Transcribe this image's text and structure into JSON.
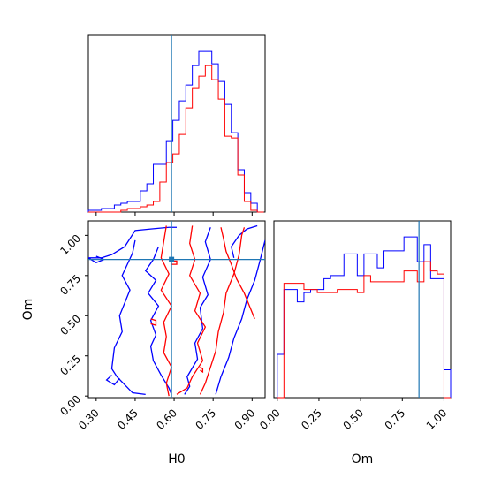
{
  "chart_data": {
    "type": "corner",
    "parameters": [
      "H0",
      "Om"
    ],
    "truth": {
      "H0": 0.59,
      "Om": 0.85
    },
    "colors": {
      "series_a": "#0000ff",
      "series_b": "#ff0000",
      "truth": "#1f77b4"
    },
    "grid": false,
    "legend": "none",
    "panels": [
      {
        "id": "h0-marginal",
        "type": "histogram",
        "param": "H0",
        "xlim": [
          0.27,
          0.95
        ],
        "bins": [
          0.27,
          0.295,
          0.32,
          0.345,
          0.37,
          0.395,
          0.42,
          0.445,
          0.47,
          0.495,
          0.52,
          0.545,
          0.57,
          0.595,
          0.62,
          0.645,
          0.67,
          0.695,
          0.72,
          0.745,
          0.77,
          0.795,
          0.82,
          0.845,
          0.87,
          0.895,
          0.92,
          0.945
        ],
        "series": [
          {
            "color": "blue",
            "values": [
              1,
              1,
              2,
              2,
              4,
              5,
              6,
              6,
              12,
              16,
              27,
              27,
              40,
              52,
              63,
              72,
              83,
              91,
              91,
              84,
              74,
              61,
              45,
              24,
              11,
              5,
              0
            ]
          },
          {
            "color": "red",
            "values": [
              0,
              0,
              0,
              0,
              0,
              1,
              2,
              2,
              3,
              4,
              6,
              17,
              28,
              33,
              44,
              59,
              70,
              77,
              83,
              75,
              64,
              43,
              42,
              21,
              6,
              1,
              0
            ]
          }
        ]
      },
      {
        "id": "om-marginal",
        "type": "histogram",
        "param": "Om",
        "xlim": [
          -0.02,
          1.04
        ],
        "bins": [
          0.0,
          0.04,
          0.08,
          0.12,
          0.16,
          0.2,
          0.24,
          0.28,
          0.32,
          0.36,
          0.4,
          0.44,
          0.48,
          0.52,
          0.56,
          0.6,
          0.64,
          0.68,
          0.72,
          0.76,
          0.8,
          0.84,
          0.88,
          0.92,
          0.96,
          1.0,
          1.04
        ],
        "series": [
          {
            "color": "blue",
            "values": [
              28,
              70,
              70,
              62,
              68,
              70,
              70,
              77,
              79,
              79,
              93,
              93,
              79,
              93,
              93,
              84,
              95,
              95,
              95,
              104,
              104,
              88,
              99,
              77,
              77,
              18
            ]
          },
          {
            "color": "red",
            "values": [
              0,
              74,
              74,
              74,
              70,
              70,
              68,
              68,
              68,
              70,
              70,
              70,
              68,
              79,
              75,
              75,
              75,
              75,
              75,
              82,
              82,
              75,
              88,
              82,
              80,
              0
            ]
          }
        ]
      },
      {
        "id": "joint-h0-om",
        "type": "contour",
        "xparam": "H0",
        "yparam": "Om",
        "xlim": [
          0.27,
          0.95
        ],
        "ylim": [
          -0.01,
          1.09
        ],
        "series": [
          {
            "color": "blue",
            "level": "outer",
            "lines": [
              [
                [
                  0.27,
                  0.86
                ],
                [
                  0.32,
                  0.86
                ],
                [
                  0.36,
                  0.88
                ],
                [
                  0.41,
                  0.93
                ],
                [
                  0.45,
                  1.03
                ],
                [
                  0.51,
                  1.04
                ],
                [
                  0.58,
                  1.05
                ],
                [
                  0.61,
                  1.05
                ]
              ],
              [
                [
                  0.45,
                  0.97
                ],
                [
                  0.44,
                  0.89
                ],
                [
                  0.42,
                  0.82
                ],
                [
                  0.4,
                  0.75
                ],
                [
                  0.43,
                  0.66
                ],
                [
                  0.41,
                  0.58
                ],
                [
                  0.39,
                  0.5
                ],
                [
                  0.4,
                  0.4
                ],
                [
                  0.37,
                  0.3
                ],
                [
                  0.36,
                  0.17
                ],
                [
                  0.38,
                  0.12
                ],
                [
                  0.44,
                  0.02
                ],
                [
                  0.49,
                  0.01
                ]
              ],
              [
                [
                  0.54,
                  0.93
                ],
                [
                  0.52,
                  0.85
                ],
                [
                  0.49,
                  0.78
                ],
                [
                  0.53,
                  0.72
                ],
                [
                  0.5,
                  0.64
                ],
                [
                  0.54,
                  0.56
                ],
                [
                  0.51,
                  0.47
                ],
                [
                  0.53,
                  0.38
                ],
                [
                  0.51,
                  0.31
                ],
                [
                  0.52,
                  0.22
                ],
                [
                  0.55,
                  0.13
                ],
                [
                  0.58,
                  0.05
                ],
                [
                  0.59,
                  0.01
                ]
              ],
              [
                [
                  0.64,
                  0.01
                ],
                [
                  0.66,
                  0.06
                ],
                [
                  0.65,
                  0.12
                ],
                [
                  0.69,
                  0.23
                ],
                [
                  0.68,
                  0.33
                ],
                [
                  0.71,
                  0.42
                ],
                [
                  0.7,
                  0.55
                ],
                [
                  0.73,
                  0.63
                ],
                [
                  0.71,
                  0.74
                ],
                [
                  0.74,
                  0.85
                ],
                [
                  0.72,
                  0.96
                ],
                [
                  0.74,
                  1.05
                ]
              ],
              [
                [
                  0.76,
                  0.01
                ],
                [
                  0.78,
                  0.12
                ],
                [
                  0.81,
                  0.24
                ],
                [
                  0.83,
                  0.36
                ],
                [
                  0.86,
                  0.48
                ],
                [
                  0.88,
                  0.6
                ],
                [
                  0.91,
                  0.72
                ],
                [
                  0.93,
                  0.84
                ],
                [
                  0.95,
                  0.97
                ]
              ],
              [
                [
                  0.83,
                  0.86
                ],
                [
                  0.82,
                  0.93
                ],
                [
                  0.85,
                  1.0
                ],
                [
                  0.88,
                  1.04
                ],
                [
                  0.92,
                  1.06
                ]
              ],
              [
                [
                  0.3,
                  0.87
                ],
                [
                  0.33,
                  0.85
                ],
                [
                  0.3,
                  0.83
                ],
                [
                  0.27,
                  0.86
                ]
              ],
              [
                [
                  0.36,
                  0.13
                ],
                [
                  0.34,
                  0.1
                ],
                [
                  0.37,
                  0.07
                ],
                [
                  0.39,
                  0.11
                ]
              ]
            ]
          },
          {
            "color": "red",
            "level": "inner",
            "lines": [
              [
                [
                  0.57,
                  1.06
                ],
                [
                  0.56,
                  0.96
                ],
                [
                  0.55,
                  0.86
                ],
                [
                  0.58,
                  0.76
                ],
                [
                  0.55,
                  0.66
                ],
                [
                  0.59,
                  0.56
                ],
                [
                  0.56,
                  0.46
                ],
                [
                  0.57,
                  0.37
                ],
                [
                  0.56,
                  0.27
                ],
                [
                  0.59,
                  0.18
                ],
                [
                  0.57,
                  0.08
                ],
                [
                  0.58,
                  0.0
                ]
              ],
              [
                [
                  0.67,
                  1.06
                ],
                [
                  0.66,
                  0.95
                ],
                [
                  0.68,
                  0.85
                ],
                [
                  0.66,
                  0.75
                ],
                [
                  0.7,
                  0.64
                ],
                [
                  0.68,
                  0.53
                ],
                [
                  0.72,
                  0.43
                ],
                [
                  0.69,
                  0.33
                ],
                [
                  0.71,
                  0.22
                ],
                [
                  0.67,
                  0.12
                ],
                [
                  0.65,
                  0.05
                ],
                [
                  0.61,
                  0.01
                ]
              ],
              [
                [
                  0.7,
                  0.01
                ],
                [
                  0.72,
                  0.08
                ],
                [
                  0.74,
                  0.18
                ],
                [
                  0.76,
                  0.28
                ],
                [
                  0.77,
                  0.4
                ],
                [
                  0.79,
                  0.52
                ],
                [
                  0.8,
                  0.64
                ],
                [
                  0.83,
                  0.76
                ],
                [
                  0.85,
                  0.88
                ],
                [
                  0.86,
                  1.0
                ],
                [
                  0.87,
                  1.05
                ]
              ],
              [
                [
                  0.78,
                  1.05
                ],
                [
                  0.79,
                  0.98
                ],
                [
                  0.8,
                  0.9
                ],
                [
                  0.82,
                  0.82
                ],
                [
                  0.84,
                  0.73
                ],
                [
                  0.87,
                  0.64
                ],
                [
                  0.89,
                  0.56
                ],
                [
                  0.91,
                  0.48
                ]
              ],
              [
                [
                  0.51,
                  0.48
                ],
                [
                  0.53,
                  0.47
                ],
                [
                  0.53,
                  0.44
                ],
                [
                  0.51,
                  0.45
                ]
              ],
              [
                [
                  0.59,
                  0.84
                ],
                [
                  0.61,
                  0.84
                ],
                [
                  0.61,
                  0.82
                ],
                [
                  0.59,
                  0.82
                ]
              ],
              [
                [
                  0.7,
                  0.18
                ],
                [
                  0.71,
                  0.17
                ],
                [
                  0.71,
                  0.15
                ],
                [
                  0.7,
                  0.16
                ]
              ]
            ]
          }
        ]
      }
    ],
    "axes": {
      "x_ticks_h0": [
        "0.30",
        "0.45",
        "0.60",
        "0.75",
        "0.90"
      ],
      "x_ticks_om": [
        "0.00",
        "0.25",
        "0.50",
        "0.75",
        "1.00"
      ],
      "y_ticks_om": [
        "0.00",
        "0.25",
        "0.50",
        "0.75",
        "1.00"
      ],
      "xlabel_h0": "H0",
      "xlabel_om": "Om",
      "ylabel_om": "Om"
    }
  }
}
